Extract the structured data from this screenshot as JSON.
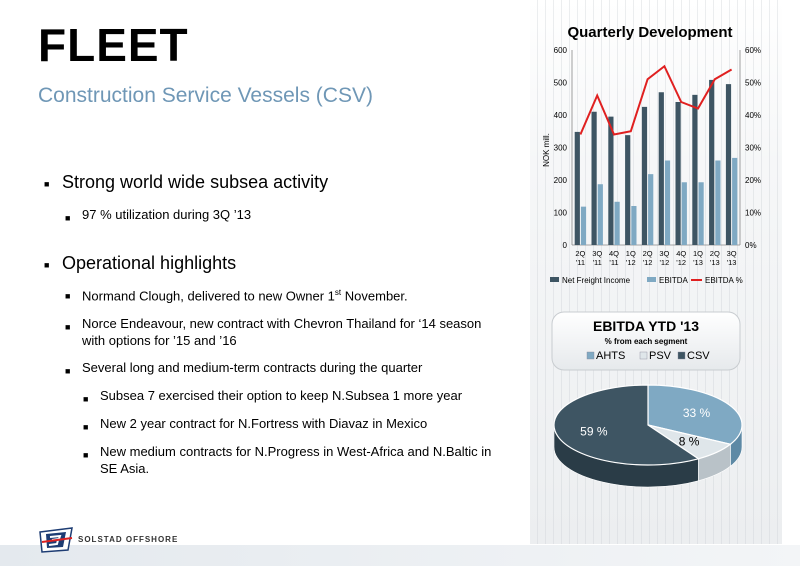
{
  "slide": {
    "title": "FLEET",
    "subtitle": "Construction Service Vessels (CSV)",
    "bullets": {
      "b1": "Strong world wide subsea activity",
      "b1_1": "97 % utilization during 3Q ’13",
      "b2": "Operational highlights",
      "b2_1_pre": "Normand Clough, delivered to new Owner 1",
      "b2_1_sup": "st",
      "b2_1_post": " November.",
      "b2_2_l1": "Norce Endeavour, new contract with Chevron Thailand for ‘14 season",
      "b2_2_l2": "with options for ’15 and ’16",
      "b2_3": "Several long and medium-term contracts during the quarter",
      "b2_3_1": "Subsea 7 exercised their option to keep N.Subsea 1 more year",
      "b2_3_2": "New 2 year contract for N.Fortress with Diavaz in Mexico",
      "b2_3_3_l1": "New medium contracts for N.Progress in West-Africa and N.Baltic in",
      "b2_3_3_l2": "SE Asia."
    }
  },
  "logo": {
    "text": "SOLSTAD OFFSHORE"
  },
  "colors": {
    "dark_bar": "#3e5563",
    "light_bar": "#7fa9c3",
    "line": "#e02020",
    "subtitle": "#6f97b6"
  },
  "chart_data": [
    {
      "type": "bar",
      "title": "Quarterly Development",
      "ylabel": "NOK mill.",
      "ylim": [
        0,
        600
      ],
      "y2lim": [
        0,
        60
      ],
      "yticks": [
        "0",
        "100",
        "200",
        "300",
        "400",
        "500",
        "600"
      ],
      "y2ticks": [
        "0%",
        "10%",
        "20%",
        "30%",
        "40%",
        "50%",
        "60%"
      ],
      "categories": [
        [
          "2Q",
          "'11"
        ],
        [
          "3Q",
          "'11"
        ],
        [
          "4Q",
          "'11"
        ],
        [
          "1Q",
          "'12"
        ],
        [
          "2Q",
          "'12"
        ],
        [
          "3Q",
          "'12"
        ],
        [
          "4Q",
          "'12"
        ],
        [
          "1Q",
          "'13"
        ],
        [
          "2Q",
          "'13"
        ],
        [
          "3Q",
          "'13"
        ]
      ],
      "series": [
        {
          "name": "Net Freight Income",
          "values": [
            348,
            410,
            395,
            338,
            425,
            470,
            440,
            462,
            508,
            495
          ]
        },
        {
          "name": "EBITDA",
          "values": [
            118,
            187,
            133,
            120,
            218,
            260,
            193,
            193,
            260,
            268
          ]
        },
        {
          "name": "EBITDA %",
          "values": [
            34,
            46,
            34,
            35,
            51,
            55,
            44,
            42,
            51,
            54
          ]
        }
      ],
      "legend_position": "bottom"
    },
    {
      "type": "pie",
      "title": "EBITDA YTD '13",
      "subtitle": "% from each segment",
      "legend": [
        "AHTS",
        "PSV",
        "CSV"
      ],
      "values": [
        33,
        8,
        59
      ],
      "labels": [
        "33 %",
        "8 %",
        "59 %"
      ],
      "legend_position": "top"
    }
  ]
}
